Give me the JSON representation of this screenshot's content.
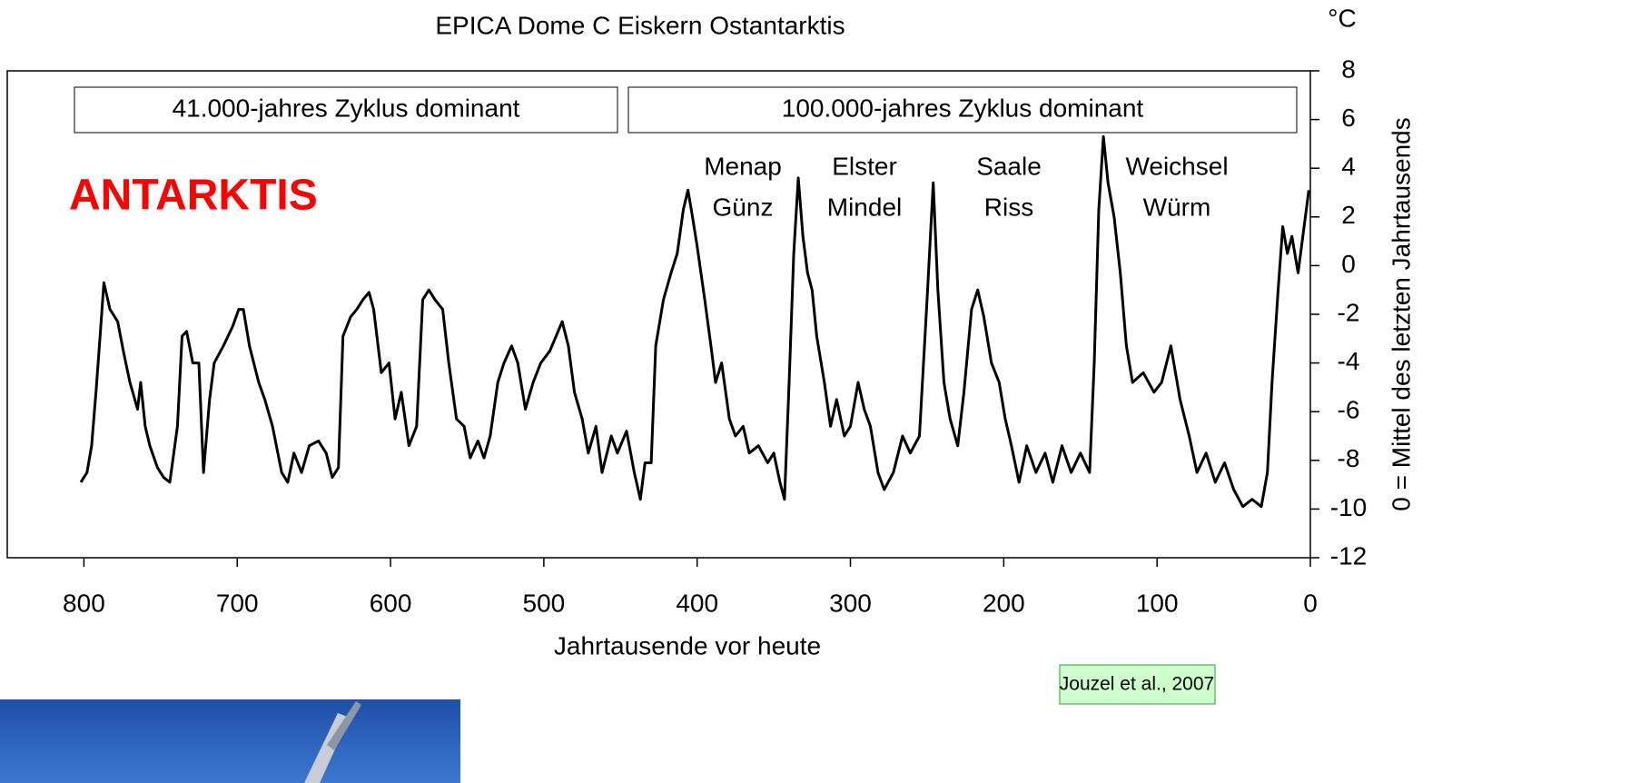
{
  "chart_data": {
    "type": "line",
    "title": "EPICA Dome C Eiskern Ostantarktis",
    "xlabel": "Jahrtausende vor heute",
    "ylabel": "0 = Mittel des letzten Jahrtausends",
    "yunit": "°C",
    "region_label": "ANTARKTIS",
    "period_boxes": [
      "41.000-jahres Zyklus dominant",
      "100.000-jahres Zyklus dominant"
    ],
    "annotations": [
      [
        "Menap",
        "Günz"
      ],
      [
        "Elster",
        "Mindel"
      ],
      [
        "Saale",
        "Riss"
      ],
      [
        "Weichsel",
        "Würm"
      ]
    ],
    "source": "Jouzel et al., 2007",
    "color": "#000000",
    "xlim": [
      850,
      0
    ],
    "xticks": [
      800,
      700,
      600,
      500,
      400,
      300,
      200,
      100,
      0
    ],
    "ylim": [
      -12,
      8
    ],
    "yticks": [
      8,
      6,
      4,
      2,
      0,
      -2,
      -4,
      -6,
      -8,
      -10,
      -12
    ],
    "x": [
      802,
      798,
      795,
      792,
      789,
      787,
      783,
      778,
      774,
      770,
      765,
      763,
      760,
      757,
      752,
      748,
      744,
      739,
      736,
      733,
      729,
      725,
      722,
      718,
      715,
      709,
      703,
      699,
      696,
      692,
      686,
      682,
      677,
      671,
      667,
      663,
      658,
      653,
      647,
      642,
      638,
      634,
      631,
      626,
      622,
      618,
      614,
      611,
      606,
      601,
      597,
      593,
      588,
      583,
      579,
      575,
      571,
      566,
      562,
      557,
      552,
      548,
      543,
      539,
      535,
      530,
      526,
      521,
      517,
      512,
      507,
      502,
      496,
      492,
      488,
      484,
      480,
      475,
      471,
      466,
      462,
      456,
      452,
      446,
      441,
      437,
      434,
      430,
      427,
      422,
      417,
      413,
      409,
      406,
      403,
      400,
      395,
      391,
      388,
      384,
      379,
      375,
      370,
      366,
      360,
      354,
      350,
      346,
      343,
      340,
      337,
      334,
      331,
      328,
      325,
      322,
      317,
      313,
      309,
      304,
      300,
      295,
      291,
      287,
      282,
      278,
      272,
      266,
      261,
      255,
      250,
      246,
      243,
      239,
      235,
      230,
      226,
      221,
      217,
      213,
      208,
      203,
      199,
      195,
      190,
      185,
      179,
      173,
      168,
      162,
      156,
      150,
      144,
      141,
      138,
      135,
      132,
      128,
      124,
      120,
      116,
      109,
      102,
      97,
      91,
      85,
      79,
      74,
      68,
      62,
      56,
      50,
      44,
      38,
      32,
      28,
      25,
      21,
      18,
      15,
      12,
      8,
      1
    ],
    "values": [
      -8.9,
      -8.5,
      -7.4,
      -5.1,
      -2.5,
      -0.7,
      -1.8,
      -2.3,
      -3.6,
      -4.8,
      -5.9,
      -4.8,
      -6.6,
      -7.4,
      -8.3,
      -8.7,
      -8.9,
      -6.6,
      -2.9,
      -2.7,
      -4.0,
      -4.0,
      -8.5,
      -5.5,
      -4.0,
      -3.3,
      -2.5,
      -1.8,
      -1.8,
      -3.3,
      -4.8,
      -5.5,
      -6.6,
      -8.5,
      -8.9,
      -7.7,
      -8.5,
      -7.4,
      -7.2,
      -7.7,
      -8.7,
      -8.3,
      -2.9,
      -2.1,
      -1.8,
      -1.4,
      -1.1,
      -1.8,
      -4.4,
      -4.0,
      -6.3,
      -5.2,
      -7.4,
      -6.6,
      -1.4,
      -1.0,
      -1.4,
      -1.8,
      -4.0,
      -6.3,
      -6.6,
      -7.9,
      -7.2,
      -7.9,
      -7.0,
      -4.8,
      -4.0,
      -3.3,
      -4.0,
      -5.9,
      -4.8,
      -4.0,
      -3.5,
      -2.9,
      -2.3,
      -3.3,
      -5.2,
      -6.3,
      -7.7,
      -6.6,
      -8.5,
      -7.0,
      -7.7,
      -6.8,
      -8.5,
      -9.6,
      -8.1,
      -8.1,
      -3.3,
      -1.4,
      -0.3,
      0.5,
      2.3,
      3.1,
      2.0,
      0.8,
      -1.4,
      -3.3,
      -4.8,
      -4.0,
      -6.3,
      -7.0,
      -6.6,
      -7.7,
      -7.4,
      -8.1,
      -7.7,
      -8.9,
      -9.6,
      -4.8,
      0.5,
      3.6,
      1.2,
      -0.3,
      -1.0,
      -2.9,
      -4.8,
      -6.6,
      -5.5,
      -7.0,
      -6.6,
      -4.8,
      -5.9,
      -6.6,
      -8.5,
      -9.2,
      -8.5,
      -7.0,
      -7.7,
      -7.0,
      -1.4,
      3.4,
      -1.0,
      -4.8,
      -6.3,
      -7.4,
      -5.2,
      -1.8,
      -1.0,
      -2.1,
      -4.0,
      -4.8,
      -6.3,
      -7.4,
      -8.9,
      -7.4,
      -8.5,
      -7.7,
      -8.9,
      -7.4,
      -8.5,
      -7.7,
      -8.5,
      -4.0,
      2.3,
      5.3,
      3.4,
      2.0,
      -0.3,
      -3.3,
      -4.8,
      -4.4,
      -5.2,
      -4.8,
      -3.3,
      -5.5,
      -7.0,
      -8.5,
      -7.7,
      -8.9,
      -8.1,
      -9.2,
      -9.9,
      -9.6,
      -9.9,
      -8.5,
      -4.8,
      -1.0,
      1.6,
      0.5,
      1.2,
      -0.3,
      3.1
    ]
  }
}
